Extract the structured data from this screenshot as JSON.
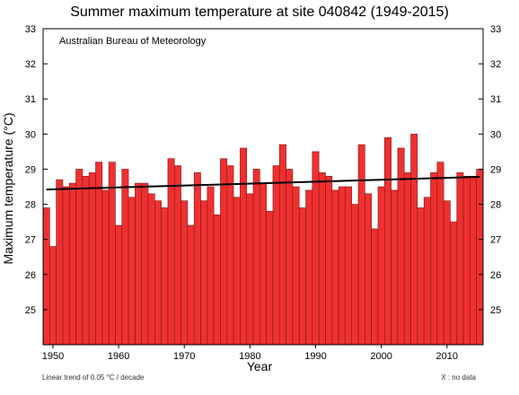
{
  "chart_data": {
    "type": "bar",
    "title": "Summer maximum temperature at site 040842 (1949-2015)",
    "source_label": "Australian Bureau of Meteorology",
    "xlabel": "Year",
    "ylabel": "Maximum temperature (°C)",
    "ylim": [
      24,
      33
    ],
    "xlim": [
      1948.5,
      2015.5
    ],
    "y_ticks": [
      25,
      26,
      27,
      28,
      29,
      30,
      31,
      32,
      33
    ],
    "x_ticks": [
      1950,
      1960,
      1970,
      1980,
      1990,
      2000,
      2010
    ],
    "bar_color": "#f03030",
    "bar_edge_color": "#7a1a1a",
    "trend_color": "#000000",
    "trend_note": "Linear trend of 0.05 °C / decade",
    "missing_note": "X : no data",
    "grid": false,
    "x": [
      1949,
      1950,
      1951,
      1952,
      1953,
      1954,
      1955,
      1956,
      1957,
      1958,
      1959,
      1960,
      1961,
      1962,
      1963,
      1964,
      1965,
      1966,
      1967,
      1968,
      1969,
      1970,
      1971,
      1972,
      1973,
      1974,
      1975,
      1976,
      1977,
      1978,
      1979,
      1980,
      1981,
      1982,
      1983,
      1984,
      1985,
      1986,
      1987,
      1988,
      1989,
      1990,
      1991,
      1992,
      1993,
      1994,
      1995,
      1996,
      1997,
      1998,
      1999,
      2000,
      2001,
      2002,
      2003,
      2004,
      2005,
      2006,
      2007,
      2008,
      2009,
      2010,
      2011,
      2012,
      2013,
      2014,
      2015
    ],
    "values": [
      27.9,
      26.8,
      28.7,
      28.5,
      28.6,
      29.0,
      28.8,
      28.9,
      29.2,
      28.4,
      29.2,
      27.4,
      29.0,
      28.2,
      28.6,
      28.6,
      28.3,
      28.1,
      27.9,
      29.3,
      29.1,
      28.1,
      27.4,
      28.9,
      28.1,
      28.5,
      27.7,
      29.3,
      29.1,
      28.2,
      29.6,
      28.3,
      29.0,
      28.6,
      27.8,
      29.1,
      29.7,
      29.0,
      28.5,
      27.9,
      28.4,
      29.5,
      28.9,
      28.8,
      28.4,
      28.5,
      28.5,
      28.0,
      29.7,
      28.3,
      27.3,
      28.5,
      29.9,
      28.4,
      29.6,
      28.9,
      30.0,
      27.9,
      28.2,
      28.9,
      29.2,
      28.1,
      27.5,
      28.9,
      28.8,
      28.8,
      29.0
    ],
    "trend": {
      "start": [
        1949,
        28.42
      ],
      "end": [
        2015,
        28.78
      ]
    }
  }
}
